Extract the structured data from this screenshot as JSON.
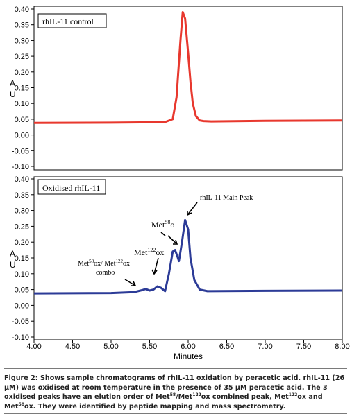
{
  "chart_data": [
    {
      "type": "line",
      "legend_box": "rhIL-11 control",
      "ylabel": "A U",
      "ylim": [
        -0.1,
        0.4
      ],
      "yticks": [
        "0.40",
        "0.35",
        "0.30",
        "0.25",
        "0.20",
        "0.15",
        "0.10",
        "0.05",
        "0.00",
        "-0.05",
        "-0.10"
      ],
      "xlim": [
        4.0,
        8.0
      ],
      "color": "#e8382e",
      "series": [
        {
          "x": [
            4.0,
            5.0,
            5.5,
            5.7,
            5.8,
            5.85,
            5.9,
            5.93,
            5.96,
            6.0,
            6.03,
            6.06,
            6.1,
            6.15,
            6.2,
            6.3,
            7.0,
            8.0
          ],
          "y": [
            0.038,
            0.039,
            0.04,
            0.041,
            0.05,
            0.12,
            0.3,
            0.39,
            0.37,
            0.26,
            0.17,
            0.1,
            0.06,
            0.046,
            0.044,
            0.043,
            0.045,
            0.046
          ]
        }
      ]
    },
    {
      "type": "line",
      "legend_box": "Oxidised rhIL-11",
      "ylabel": "A U",
      "ylim": [
        -0.1,
        0.4
      ],
      "yticks": [
        "0.40",
        "0.35",
        "0.30",
        "0.25",
        "0.20",
        "0.15",
        "0.10",
        "0.05",
        "0.00",
        "-0.05",
        "-0.10"
      ],
      "xlim": [
        4.0,
        8.0
      ],
      "xticks": [
        "4.00",
        "4.50",
        "5.00",
        "5.50",
        "6.00",
        "6.50",
        "7.00",
        "7.50",
        "8.00"
      ],
      "xlabel": "Minutes",
      "color": "#2c3b97",
      "series": [
        {
          "x": [
            4.0,
            5.0,
            5.3,
            5.4,
            5.45,
            5.5,
            5.55,
            5.6,
            5.65,
            5.7,
            5.75,
            5.8,
            5.83,
            5.86,
            5.88,
            5.92,
            5.96,
            6.0,
            6.03,
            6.08,
            6.15,
            6.25,
            7.0,
            8.0
          ],
          "y": [
            0.038,
            0.039,
            0.042,
            0.048,
            0.052,
            0.047,
            0.05,
            0.06,
            0.055,
            0.045,
            0.1,
            0.17,
            0.175,
            0.155,
            0.14,
            0.2,
            0.27,
            0.24,
            0.15,
            0.08,
            0.05,
            0.045,
            0.046,
            0.047
          ]
        }
      ],
      "annotations": {
        "main_peak": "rhIL-11 Main Peak",
        "met58": {
          "base": "Met",
          "sup": "58",
          "suffix": "o"
        },
        "met122": {
          "base": "Met",
          "sup": "122",
          "suffix": "ox"
        },
        "combo": {
          "base1": "Met",
          "sup1": "58",
          "mid": "ox/ Met",
          "sup2": "122",
          "suffix": "ox",
          "line2": "combo"
        }
      }
    }
  ],
  "caption": {
    "p1": "Figure 2: Shows sample chromatograms of rhIL-11 oxidation by peracetic acid. rhIL-11 (26 µM) was oxidised at room temperature in the presence of 35 µM peracetic acid. The 3 oxidised peaks have an elution order of Met",
    "s1": "58",
    "p2": "/Met",
    "s2": "122",
    "p3": "ox combined peak, Met",
    "s3": "122",
    "p4": "ox and Met",
    "s4": "58",
    "p5": "ox. They were identified by peptide mapping and mass spectrometry."
  }
}
